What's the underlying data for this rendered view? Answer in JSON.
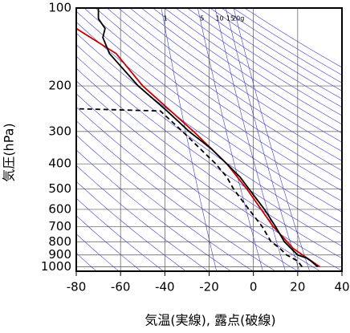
{
  "chart_data": {
    "type": "line",
    "x_label": "気温(実線), 露点(破線)",
    "y_label": "気圧(hPa)",
    "xlim": [
      -80,
      40
    ],
    "xticks": [
      -80,
      -60,
      -40,
      -20,
      0,
      20,
      40
    ],
    "ylim": [
      100,
      1040
    ],
    "yticks": [
      100,
      200,
      300,
      400,
      500,
      600,
      700,
      800,
      900,
      1000
    ],
    "y_log": true,
    "y_reversed": true,
    "grid": true,
    "mixing_ratio_labels": [
      {
        "value": 1,
        "label": "1"
      },
      {
        "value": 5,
        "label": "5"
      },
      {
        "value": 10,
        "label": "10"
      },
      {
        "value": 15,
        "label": "15"
      },
      {
        "value": 20,
        "label": "20g"
      }
    ],
    "series": [
      {
        "color": "#cc0000",
        "style": "solid",
        "x": [
          30,
          18,
          9,
          -3,
          -12,
          -27,
          -50,
          -62,
          -80
        ],
        "y": [
          1000,
          850,
          700,
          500,
          400,
          300,
          200,
          150,
          120
        ]
      },
      {
        "color": "#000000",
        "style": "solid",
        "x": [
          29,
          26,
          24,
          20,
          17,
          14,
          10,
          5,
          -2,
          -6,
          -12,
          -19,
          -29,
          -39,
          -52,
          -65,
          -68,
          -67,
          -70,
          -70
        ],
        "y": [
          1000,
          950,
          925,
          900,
          850,
          800,
          700,
          600,
          500,
          450,
          400,
          350,
          300,
          250,
          200,
          150,
          130,
          120,
          110,
          100
        ]
      },
      {
        "color": "#000000",
        "style": "dashed",
        "x": [
          22,
          20,
          15,
          12,
          8,
          4,
          -2,
          -9,
          -12,
          -17,
          -24,
          -32,
          -42,
          -80
        ],
        "y": [
          1000,
          950,
          900,
          850,
          800,
          700,
          600,
          500,
          450,
          400,
          350,
          300,
          250,
          245
        ]
      }
    ]
  }
}
